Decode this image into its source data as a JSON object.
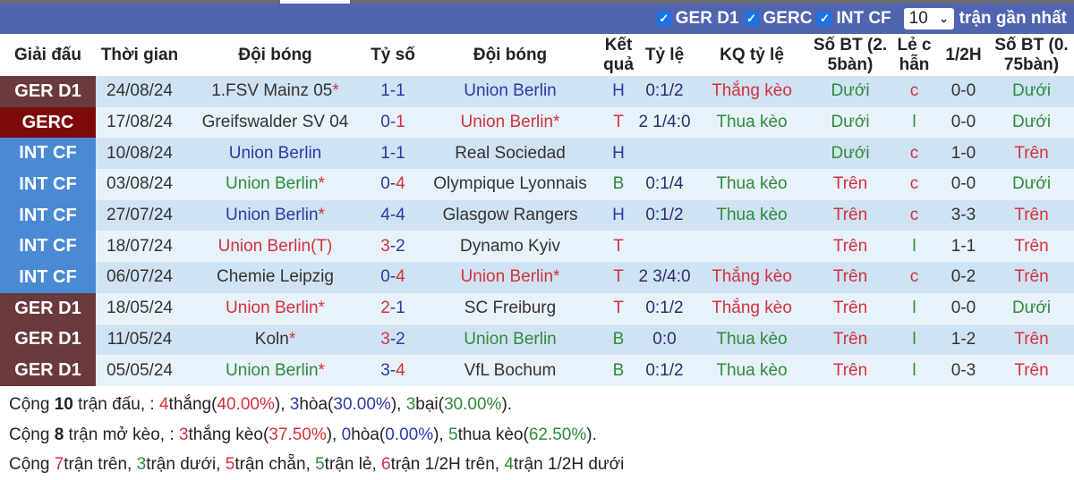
{
  "filters": {
    "items": [
      {
        "label": "GER D1",
        "checked": true
      },
      {
        "label": "GERC",
        "checked": true
      },
      {
        "label": "INT CF",
        "checked": true
      }
    ],
    "count": "10",
    "suffix": "trận gần nhất"
  },
  "headers": [
    "Giải đấu",
    "Thời gian",
    "Đội bóng",
    "Tỷ số",
    "Đội bóng",
    "Kết quả",
    "Tỷ lệ",
    "KQ tỷ lệ",
    "Số BT (2. 5bàn)",
    "Lẻ c hẫn",
    "1/2H",
    "Số BT (0. 75bàn)"
  ],
  "league_colors": {
    "GER D1": "#6b3a3d",
    "GERC": "#7d0a0a",
    "INT CF": "#4a8ad4"
  },
  "rows": [
    {
      "league": "GER D1",
      "date": "24/08/24",
      "home": "1.FSV Mainz 05",
      "home_star": "*",
      "home_color": "dark",
      "score": "1-1",
      "away": "Union Berlin",
      "away_star": "",
      "away_color": "blue",
      "result": "H",
      "odds": "0:1/2",
      "odds_result": "Thắng kèo",
      "ou": "Dưới",
      "oe": "c",
      "half": "0-0",
      "ou75": "Dưới"
    },
    {
      "league": "GERC",
      "date": "17/08/24",
      "home": "Greifswalder SV 04",
      "home_star": "",
      "home_color": "dark",
      "score": "0-1",
      "away": "Union Berlin",
      "away_star": "*",
      "away_color": "red",
      "result": "T",
      "odds": "2 1/4:0",
      "odds_result": "Thua kèo",
      "ou": "Dưới",
      "oe": "l",
      "half": "0-0",
      "ou75": "Dưới"
    },
    {
      "league": "INT CF",
      "date": "10/08/24",
      "home": "Union Berlin",
      "home_star": "",
      "home_color": "blue",
      "score": "1-1",
      "away": "Real Sociedad",
      "away_star": "",
      "away_color": "dark",
      "result": "H",
      "odds": "",
      "odds_result": "",
      "ou": "Dưới",
      "oe": "c",
      "half": "1-0",
      "ou75": "Trên"
    },
    {
      "league": "INT CF",
      "date": "03/08/24",
      "home": "Union Berlin",
      "home_star": "*",
      "home_color": "green",
      "score": "0-4",
      "away": "Olympique Lyonnais",
      "away_star": "",
      "away_color": "dark",
      "result": "B",
      "odds": "0:1/4",
      "odds_result": "Thua kèo",
      "ou": "Trên",
      "oe": "c",
      "half": "0-0",
      "ou75": "Dưới"
    },
    {
      "league": "INT CF",
      "date": "27/07/24",
      "home": "Union Berlin",
      "home_star": "*",
      "home_color": "blue",
      "score": "4-4",
      "away": "Glasgow Rangers",
      "away_star": "",
      "away_color": "dark",
      "result": "H",
      "odds": "0:1/2",
      "odds_result": "Thua kèo",
      "ou": "Trên",
      "oe": "c",
      "half": "3-3",
      "ou75": "Trên"
    },
    {
      "league": "INT CF",
      "date": "18/07/24",
      "home": "Union Berlin(T)",
      "home_star": "",
      "home_color": "red",
      "score": "3-2",
      "away": "Dynamo Kyiv",
      "away_star": "",
      "away_color": "dark",
      "result": "T",
      "odds": "",
      "odds_result": "",
      "ou": "Trên",
      "oe": "l",
      "half": "1-1",
      "ou75": "Trên"
    },
    {
      "league": "INT CF",
      "date": "06/07/24",
      "home": "Chemie Leipzig",
      "home_star": "",
      "home_color": "dark",
      "score": "0-4",
      "away": "Union Berlin",
      "away_star": "*",
      "away_color": "red",
      "result": "T",
      "odds": "2 3/4:0",
      "odds_result": "Thắng kèo",
      "ou": "Trên",
      "oe": "c",
      "half": "0-2",
      "ou75": "Trên"
    },
    {
      "league": "GER D1",
      "date": "18/05/24",
      "home": "Union Berlin",
      "home_star": "*",
      "home_color": "red",
      "score": "2-1",
      "away": "SC Freiburg",
      "away_star": "",
      "away_color": "dark",
      "result": "T",
      "odds": "0:1/2",
      "odds_result": "Thắng kèo",
      "ou": "Trên",
      "oe": "l",
      "half": "0-0",
      "ou75": "Dưới"
    },
    {
      "league": "GER D1",
      "date": "11/05/24",
      "home": "Koln",
      "home_star": "*",
      "home_color": "dark",
      "score": "3-2",
      "away": "Union Berlin",
      "away_star": "",
      "away_color": "green",
      "result": "B",
      "odds": "0:0",
      "odds_result": "Thua kèo",
      "ou": "Trên",
      "oe": "l",
      "half": "1-2",
      "ou75": "Trên"
    },
    {
      "league": "GER D1",
      "date": "05/05/24",
      "home": "Union Berlin",
      "home_star": "*",
      "home_color": "green",
      "score": "3-4",
      "away": "VfL Bochum",
      "away_star": "",
      "away_color": "dark",
      "result": "B",
      "odds": "0:1/2",
      "odds_result": "Thua kèo",
      "ou": "Trên",
      "oe": "l",
      "half": "0-3",
      "ou75": "Trên"
    }
  ],
  "summary": [
    [
      {
        "t": "Cộng ",
        "c": ""
      },
      {
        "t": "10",
        "c": "b"
      },
      {
        "t": " trận đấu, : ",
        "c": ""
      },
      {
        "t": "4",
        "c": "red"
      },
      {
        "t": "thắng(",
        "c": ""
      },
      {
        "t": "40.00%",
        "c": "red"
      },
      {
        "t": "), ",
        "c": ""
      },
      {
        "t": "3",
        "c": "blue"
      },
      {
        "t": "hòa(",
        "c": ""
      },
      {
        "t": "30.00%",
        "c": "blue"
      },
      {
        "t": "), ",
        "c": ""
      },
      {
        "t": "3",
        "c": "green"
      },
      {
        "t": "bại(",
        "c": ""
      },
      {
        "t": "30.00%",
        "c": "green"
      },
      {
        "t": ").",
        "c": ""
      }
    ],
    [
      {
        "t": "Cộng ",
        "c": ""
      },
      {
        "t": "8",
        "c": "b"
      },
      {
        "t": " trận mở kèo, : ",
        "c": ""
      },
      {
        "t": "3",
        "c": "red"
      },
      {
        "t": "thắng kèo(",
        "c": ""
      },
      {
        "t": "37.50%",
        "c": "red"
      },
      {
        "t": "), ",
        "c": ""
      },
      {
        "t": "0",
        "c": "blue"
      },
      {
        "t": "hòa(",
        "c": ""
      },
      {
        "t": "0.00%",
        "c": "blue"
      },
      {
        "t": "), ",
        "c": ""
      },
      {
        "t": "5",
        "c": "green"
      },
      {
        "t": "thua kèo(",
        "c": ""
      },
      {
        "t": "62.50%",
        "c": "green"
      },
      {
        "t": ").",
        "c": ""
      }
    ],
    [
      {
        "t": "Cộng ",
        "c": ""
      },
      {
        "t": "7",
        "c": "red"
      },
      {
        "t": "trận trên, ",
        "c": ""
      },
      {
        "t": "3",
        "c": "green"
      },
      {
        "t": "trận dưới, ",
        "c": ""
      },
      {
        "t": "5",
        "c": "red"
      },
      {
        "t": "trận chẵn, ",
        "c": ""
      },
      {
        "t": "5",
        "c": "green"
      },
      {
        "t": "trận lẻ, ",
        "c": ""
      },
      {
        "t": "6",
        "c": "red"
      },
      {
        "t": "trận 1/2H trên, ",
        "c": ""
      },
      {
        "t": "4",
        "c": "green"
      },
      {
        "t": "trận 1/2H dưới",
        "c": ""
      }
    ]
  ]
}
